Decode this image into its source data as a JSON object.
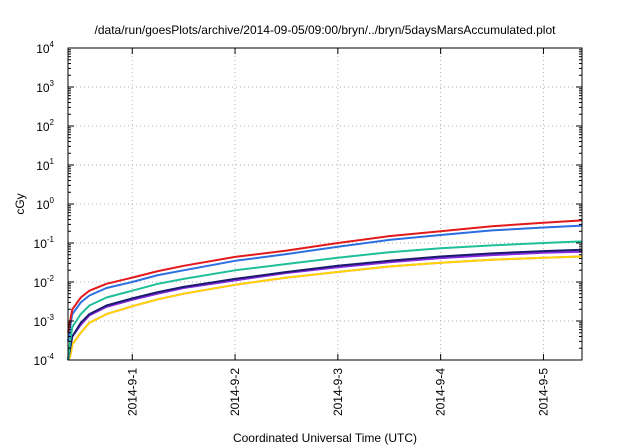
{
  "chart_data": {
    "type": "line",
    "title": "/data/run/goesPlots/archive/2014-09-05/09:00/bryn/../bryn/5daysMarsAccumulated.plot",
    "xlabel": "Coordinated Universal Time (UTC)",
    "ylabel": "cGy",
    "x_ticks": [
      "2014-9-1",
      "2014-9-2",
      "2014-9-3",
      "2014-9-4",
      "2014-9-5"
    ],
    "y_ticks": [
      {
        "base": "10",
        "exp": "-4"
      },
      {
        "base": "10",
        "exp": "-3"
      },
      {
        "base": "10",
        "exp": "-2"
      },
      {
        "base": "10",
        "exp": "-1"
      },
      {
        "base": "10",
        "exp": "0"
      },
      {
        "base": "10",
        "exp": "1"
      },
      {
        "base": "10",
        "exp": "2"
      },
      {
        "base": "10",
        "exp": "3"
      },
      {
        "base": "10",
        "exp": "4"
      }
    ],
    "y_scale": "log",
    "ylim": [
      0.0001,
      10000
    ],
    "xlim": [
      "2014-08-31 09:00",
      "2014-09-05 09:00"
    ],
    "grid": true,
    "x": [
      "2014-08-31 09:00",
      "2014-08-31 09:30",
      "2014-08-31 10:00",
      "2014-08-31 12:00",
      "2014-08-31 14:00",
      "2014-08-31 18:00",
      "2014-09-01 00:00",
      "2014-09-01 06:00",
      "2014-09-01 12:00",
      "2014-09-02 00:00",
      "2014-09-02 12:00",
      "2014-09-03 00:00",
      "2014-09-03 12:00",
      "2014-09-04 00:00",
      "2014-09-04 12:00",
      "2014-09-05 00:00",
      "2014-09-05 09:00"
    ],
    "series": [
      {
        "color": "#e31a1c",
        "values": [
          0.0005,
          0.001,
          0.002,
          0.004,
          0.006,
          0.009,
          0.013,
          0.019,
          0.026,
          0.044,
          0.064,
          0.1,
          0.15,
          0.2,
          0.27,
          0.33,
          0.38
        ]
      },
      {
        "color": "#2b6fe0",
        "values": [
          0.0003,
          0.0007,
          0.0015,
          0.003,
          0.0045,
          0.007,
          0.01,
          0.015,
          0.02,
          0.035,
          0.052,
          0.08,
          0.12,
          0.16,
          0.21,
          0.25,
          0.28
        ]
      },
      {
        "color": "#1fbf9a",
        "values": [
          0.0001,
          0.0003,
          0.0007,
          0.0015,
          0.0025,
          0.004,
          0.006,
          0.009,
          0.012,
          0.02,
          0.029,
          0.042,
          0.058,
          0.073,
          0.087,
          0.1,
          0.11
        ]
      },
      {
        "color": "#1a1a6e",
        "values": [
          0.0001,
          0.0002,
          0.0004,
          0.0009,
          0.0015,
          0.0025,
          0.0038,
          0.0055,
          0.0075,
          0.012,
          0.018,
          0.026,
          0.035,
          0.045,
          0.054,
          0.062,
          0.067
        ]
      },
      {
        "color": "#8a2be2",
        "values": [
          0.0001,
          0.0002,
          0.0004,
          0.0008,
          0.0014,
          0.0023,
          0.0035,
          0.005,
          0.007,
          0.011,
          0.017,
          0.024,
          0.032,
          0.041,
          0.049,
          0.056,
          0.06
        ]
      },
      {
        "color": "#ffd700",
        "values": [
          6e-05,
          0.00012,
          0.00025,
          0.0005,
          0.0009,
          0.0015,
          0.0024,
          0.0036,
          0.005,
          0.0085,
          0.013,
          0.018,
          0.025,
          0.031,
          0.037,
          0.042,
          0.045
        ]
      },
      {
        "color": "#e62be6",
        "values": [
          6e-05,
          0.00012,
          0.00025,
          0.0005,
          0.0009,
          0.0015,
          0.0024,
          0.0036,
          0.005,
          0.0085,
          0.013,
          0.018,
          0.025,
          0.031,
          0.037,
          0.042,
          0.045
        ]
      }
    ]
  }
}
